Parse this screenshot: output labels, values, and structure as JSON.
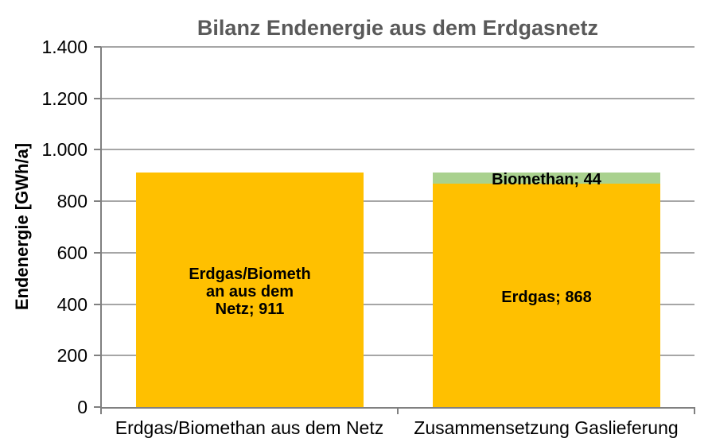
{
  "chart_data": {
    "type": "bar",
    "stacked": true,
    "title": "Bilanz Endenergie aus dem Erdgasnetz",
    "ylabel": "Endenergie [GWh/a]",
    "xlabel": "",
    "ylim": [
      0,
      1400
    ],
    "grid": true,
    "legend": "none",
    "ytick_values": [
      0,
      200,
      400,
      600,
      800,
      1000,
      1200,
      1400
    ],
    "ytick_labels": [
      "0",
      "200",
      "400",
      "600",
      "800",
      "1.000",
      "1.200",
      "1.400"
    ],
    "categories": [
      "Erdgas/Biomethan aus dem Netz",
      "Zusammensetzung Gaslieferung"
    ],
    "bars": [
      {
        "category": "Erdgas/Biomethan aus dem Netz",
        "segments": [
          {
            "name": "Erdgas/Biomethan aus dem Netz",
            "value": 911,
            "color": "#FFC000",
            "label_lines": [
              "Erdgas/Biometh",
              "an aus dem",
              "Netz; 911"
            ]
          }
        ]
      },
      {
        "category": "Zusammensetzung Gaslieferung",
        "segments": [
          {
            "name": "Erdgas",
            "value": 868,
            "color": "#FFC000",
            "label_lines": [
              "Erdgas; 868"
            ]
          },
          {
            "name": "Biomethan",
            "value": 44,
            "color": "#A9D18E",
            "label_lines": [
              "Biomethan; 44"
            ]
          }
        ]
      }
    ],
    "colors": {
      "erdgas": "#FFC000",
      "biomethan": "#A9D18E",
      "gridline": "#A6A6A6",
      "axis": "#808080",
      "title_text": "#595959",
      "label_text": "#000000"
    }
  }
}
